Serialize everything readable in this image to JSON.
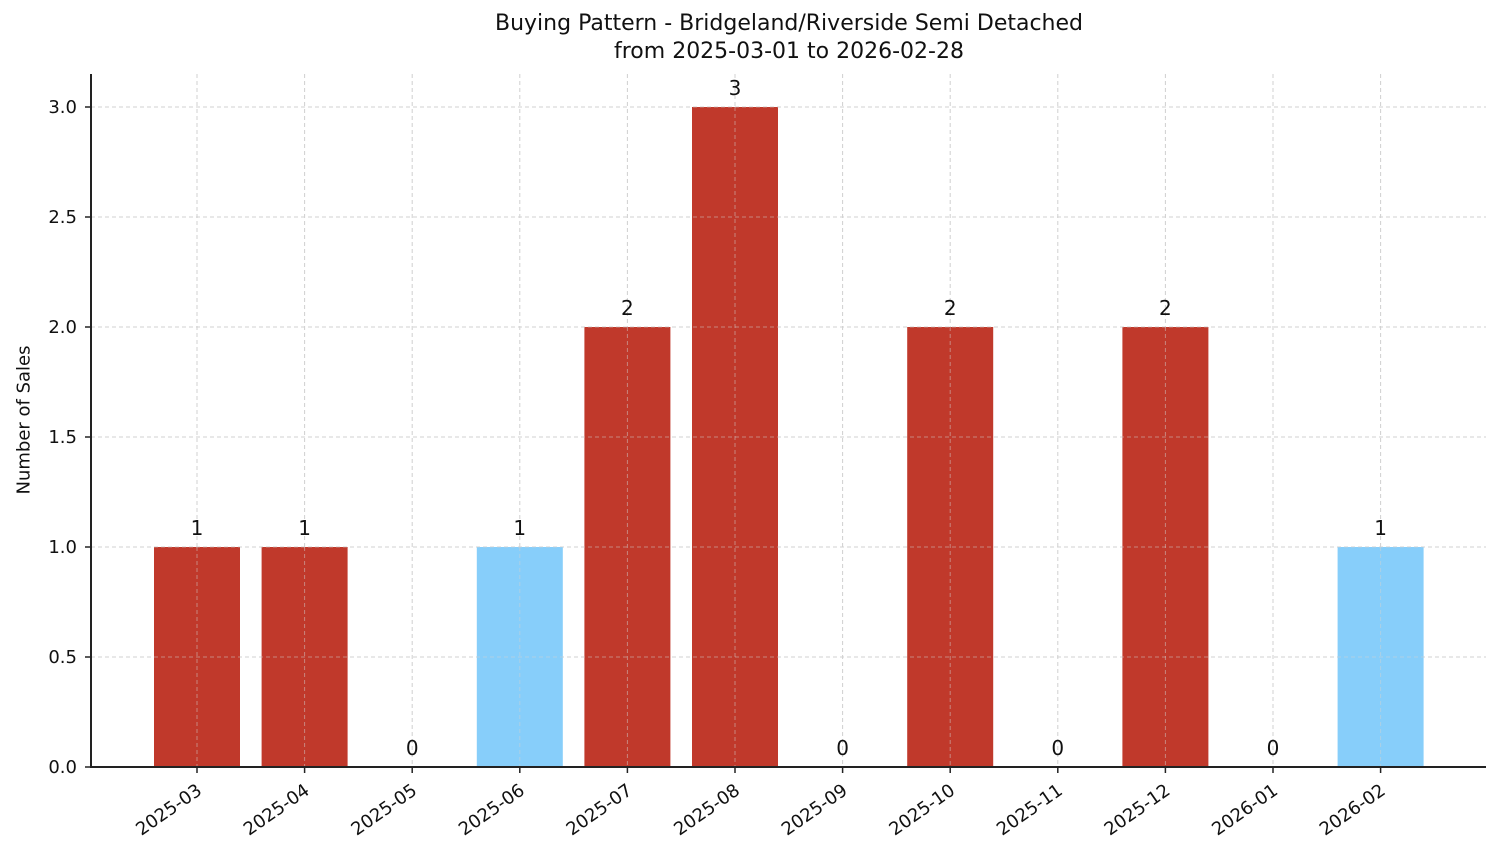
{
  "chart_data": {
    "type": "bar",
    "title": "Buying Pattern - Bridgeland/Riverside Semi Detached",
    "subtitle": "from 2025-03-01 to 2026-02-28",
    "xlabel": "",
    "ylabel": "Number of Sales",
    "categories": [
      "2025-03",
      "2025-04",
      "2025-05",
      "2025-06",
      "2025-07",
      "2025-08",
      "2025-09",
      "2025-10",
      "2025-11",
      "2025-12",
      "2026-01",
      "2026-02"
    ],
    "values": [
      1,
      1,
      0,
      1,
      2,
      3,
      0,
      2,
      0,
      2,
      0,
      1
    ],
    "bar_colors": [
      "#c0392b",
      "#c0392b",
      "#c0392b",
      "#87cefa",
      "#c0392b",
      "#c0392b",
      "#c0392b",
      "#c0392b",
      "#c0392b",
      "#c0392b",
      "#c0392b",
      "#87cefa"
    ],
    "data_labels": [
      "1",
      "1",
      "0",
      "1",
      "2",
      "3",
      "0",
      "2",
      "0",
      "2",
      "0",
      "1"
    ],
    "yticks": [
      "0.0",
      "0.5",
      "1.0",
      "1.5",
      "2.0",
      "2.5",
      "3.0"
    ],
    "ylim": [
      0,
      3.15
    ],
    "grid": true,
    "legend": null
  },
  "colors": {
    "primary_bar": "#c0392b",
    "highlight_bar": "#87cefa"
  }
}
